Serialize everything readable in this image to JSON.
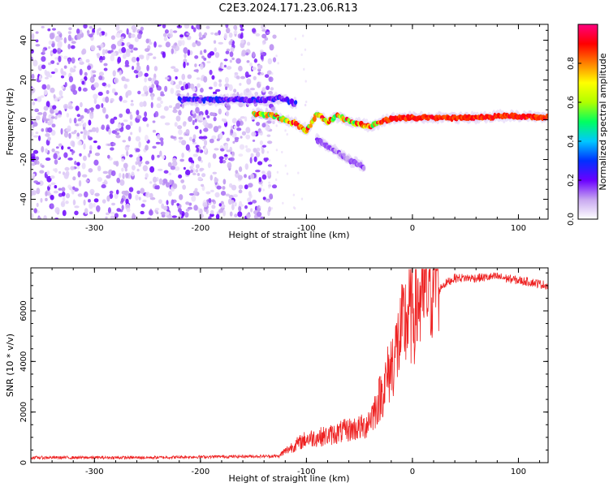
{
  "title": "C2E3.2024.171.23.06.R13",
  "chart_data": [
    {
      "type": "heatmap",
      "xlabel": "Height of straight line (km)",
      "ylabel": "Frequency (Hz)",
      "xlim": [
        -360,
        128
      ],
      "ylim": [
        -50,
        48
      ],
      "xticks": [
        -300,
        -200,
        -100,
        0,
        100
      ],
      "yticks": [
        -40,
        -20,
        0,
        20,
        40
      ],
      "xtick_labels": [
        "-300",
        "-200",
        "-100",
        "0",
        "100"
      ],
      "ytick_labels": [
        "-40",
        "-20",
        "0",
        "20",
        "40"
      ],
      "colorbar": {
        "label": "Normalized spectral amplitude",
        "range": [
          0,
          1
        ],
        "ticks": [
          0.0,
          0.2,
          0.4,
          0.6,
          0.8
        ],
        "tick_labels": [
          "0.0",
          "0.2",
          "0.4",
          "0.6",
          "0.8"
        ],
        "colormap": [
          "#ffffff",
          "#c8a8f0",
          "#6a00ff",
          "#0030ff",
          "#00c8ff",
          "#00ff60",
          "#b0ff00",
          "#ffff00",
          "#ff8000",
          "#ff0000",
          "#ff0080"
        ]
      },
      "ridges": [
        {
          "name": "carrier",
          "points": [
            [
              -220,
              10
            ],
            [
              -200,
              10
            ],
            [
              -180,
              10
            ],
            [
              -160,
              10
            ],
            [
              -140,
              10
            ],
            [
              -125,
              11
            ],
            [
              -110,
              8
            ]
          ],
          "amplitude": 0.25
        },
        {
          "name": "doppler",
          "points": [
            [
              -150,
              3
            ],
            [
              -130,
              2
            ],
            [
              -110,
              -2
            ],
            [
              -100,
              -6
            ],
            [
              -90,
              3
            ],
            [
              -80,
              -1
            ],
            [
              -70,
              2
            ],
            [
              -55,
              -2
            ],
            [
              -40,
              -3
            ],
            [
              -25,
              0
            ],
            [
              -10,
              1
            ],
            [
              0,
              1
            ],
            [
              20,
              1
            ],
            [
              60,
              1
            ],
            [
              90,
              2
            ],
            [
              128,
              1
            ]
          ],
          "amplitude": 0.8
        },
        {
          "name": "tail",
          "points": [
            [
              -90,
              -10
            ],
            [
              -75,
              -15
            ],
            [
              -60,
              -20
            ],
            [
              -45,
              -24
            ]
          ],
          "amplitude": 0.15
        }
      ],
      "noise_region": {
        "x": [
          -360,
          -140
        ],
        "y": [
          -50,
          48
        ],
        "amplitude": 0.1
      }
    },
    {
      "type": "line",
      "xlabel": "Height of straight line (km)",
      "ylabel": "SNR (10 * v/v)",
      "xlim": [
        -360,
        128
      ],
      "ylim": [
        0,
        7700
      ],
      "xticks": [
        -300,
        -200,
        -100,
        0,
        100
      ],
      "yticks": [
        0,
        2000,
        4000,
        6000
      ],
      "xtick_labels": [
        "-300",
        "-200",
        "-100",
        "0",
        "100"
      ],
      "ytick_labels": [
        "0",
        "2000",
        "4000",
        "6000"
      ],
      "color": "#ee2222",
      "series": [
        {
          "name": "SNR",
          "x": [
            -360,
            -300,
            -250,
            -200,
            -150,
            -125,
            -115,
            -100,
            -80,
            -60,
            -45,
            -35,
            -25,
            -15,
            -5,
            5,
            12,
            20,
            28,
            40,
            60,
            80,
            100,
            110,
            128
          ],
          "y": [
            200,
            200,
            200,
            230,
            250,
            260,
            500,
            800,
            900,
            1100,
            1200,
            1800,
            2700,
            3800,
            4900,
            5400,
            5700,
            6400,
            7000,
            7300,
            7300,
            7350,
            7200,
            7150,
            7000
          ]
        }
      ]
    }
  ]
}
